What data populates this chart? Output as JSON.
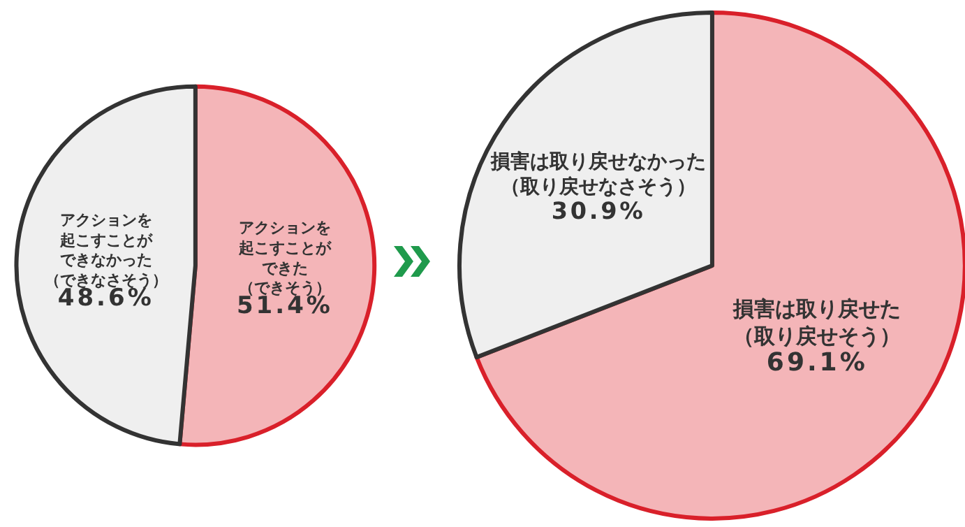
{
  "chart_data": [
    {
      "type": "pie",
      "categories": [
        "アクションを起こすことができた（できそう）",
        "アクションを起こすことができなかった（できなさそう）"
      ],
      "values": [
        51.4,
        48.6
      ],
      "value_labels": [
        "51.4%",
        "48.6%"
      ],
      "colors": [
        "#f4b5b8",
        "#efefef"
      ]
    },
    {
      "type": "pie",
      "categories": [
        "損害は取り戻せた（取り戻せそう）",
        "損害は取り戻せなかった（取り戻せなさそう）"
      ],
      "values": [
        69.1,
        30.9
      ],
      "value_labels": [
        "69.1%",
        "30.9%"
      ],
      "colors": [
        "#f4b5b8",
        "#efefef"
      ]
    }
  ]
}
